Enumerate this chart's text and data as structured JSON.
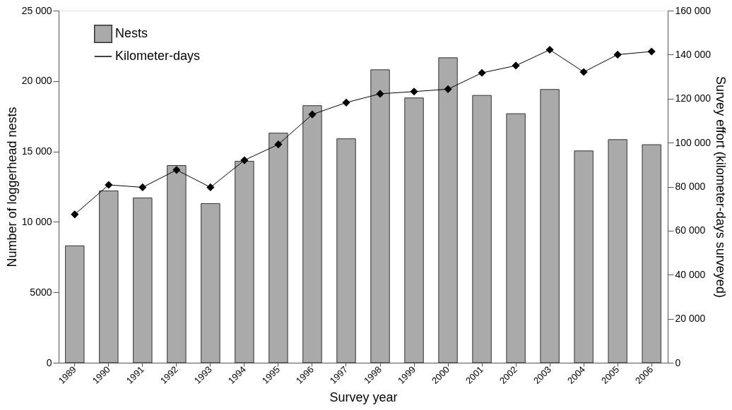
{
  "chart_data": {
    "type": "bar",
    "xlabel": "Survey year",
    "ylabel": "Number of loggerhead nests",
    "y2label": "Survey effort (kilometer-days surveyed)",
    "categories": [
      "1989",
      "1990",
      "1991",
      "1992",
      "1993",
      "1994",
      "1995",
      "1996",
      "1997",
      "1998",
      "1999",
      "2000",
      "2001",
      "2002",
      "2003",
      "2004",
      "2005",
      "2006"
    ],
    "series": [
      {
        "name": "Nests",
        "color": "#aaaaaa",
        "values": [
          8300,
          12200,
          11700,
          14000,
          11300,
          14300,
          16300,
          18250,
          15900,
          20800,
          18800,
          21650,
          18980,
          17680,
          19400,
          15040,
          15840,
          15480
        ]
      },
      {
        "name": "Kilometer-days",
        "type": "line",
        "axis": "y2",
        "color": "#000000",
        "marker": "diamond",
        "values": [
          67400,
          80800,
          79700,
          87600,
          79700,
          92000,
          99200,
          112800,
          118200,
          122200,
          123200,
          124300,
          131700,
          135000,
          142200,
          132100,
          140000,
          141400
        ]
      }
    ],
    "ylim": [
      0,
      25000
    ],
    "yticks": [
      0,
      5000,
      {
        "value": 10000,
        "label": "10 000"
      },
      {
        "value": 15000,
        "label": "15 000"
      },
      {
        "value": 20000,
        "label": "20 000"
      },
      {
        "value": 25000,
        "label": "25 000"
      }
    ],
    "y2lim": [
      0,
      160000
    ],
    "y2ticks": [
      0,
      {
        "value": 20000,
        "label": "20 000"
      },
      {
        "value": 40000,
        "label": "40 000"
      },
      {
        "value": 60000,
        "label": "60 000"
      },
      {
        "value": 80000,
        "label": "80 000"
      },
      {
        "value": 100000,
        "label": "100 000"
      },
      {
        "value": 120000,
        "label": "120 000"
      },
      {
        "value": 140000,
        "label": "140 000"
      },
      {
        "value": 160000,
        "label": "160 000"
      }
    ],
    "grid": false,
    "legend": "top left"
  }
}
